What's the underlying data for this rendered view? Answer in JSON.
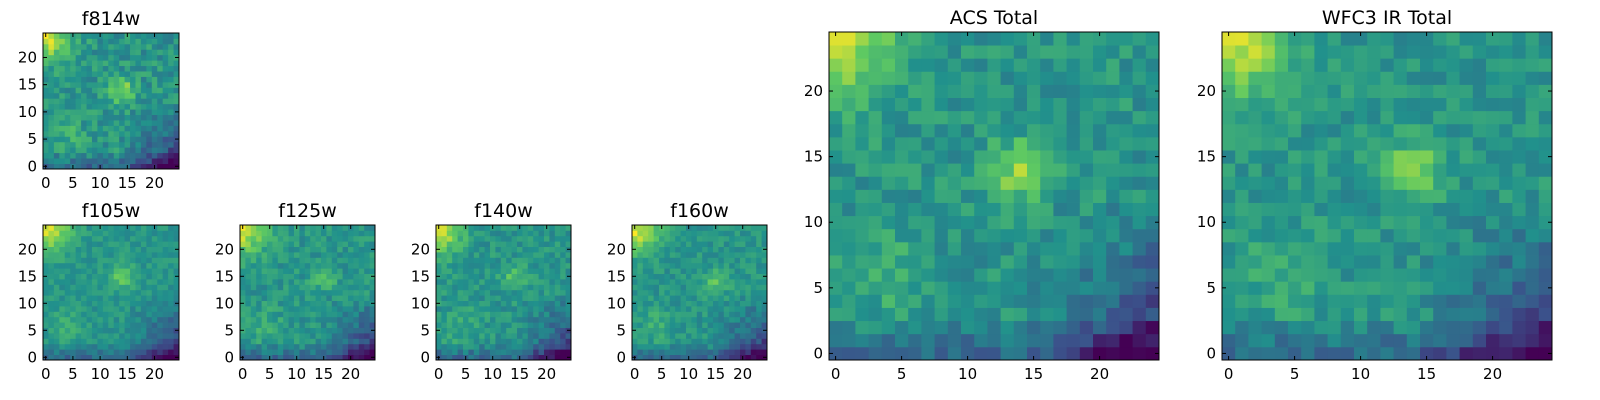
{
  "figure": {
    "colormap": [
      "#440154",
      "#3b528b",
      "#21918c",
      "#5ec962",
      "#fde725"
    ],
    "axis_color": "#000000"
  },
  "chart_data": [
    {
      "type": "heatmap",
      "title": "f814w",
      "xlim": [
        0,
        24
      ],
      "ylim": [
        0,
        24
      ],
      "xticks": [
        0,
        5,
        10,
        15,
        20
      ],
      "yticks": [
        0,
        5,
        10,
        15,
        20
      ],
      "grid_size": 25,
      "peak": [
        14,
        14
      ],
      "peak_strength": 0.32,
      "noise": 0.11,
      "seed": 3
    },
    {
      "type": "heatmap",
      "title": "f105w",
      "xlim": [
        0,
        24
      ],
      "ylim": [
        0,
        24
      ],
      "xticks": [
        0,
        5,
        10,
        15,
        20
      ],
      "yticks": [
        0,
        5,
        10,
        15,
        20
      ],
      "grid_size": 25,
      "peak": [
        14,
        15
      ],
      "peak_strength": 0.25,
      "noise": 0.07,
      "seed": 7
    },
    {
      "type": "heatmap",
      "title": "f125w",
      "xlim": [
        0,
        24
      ],
      "ylim": [
        0,
        24
      ],
      "xticks": [
        0,
        5,
        10,
        15,
        20
      ],
      "yticks": [
        0,
        5,
        10,
        15,
        20
      ],
      "grid_size": 25,
      "peak": [
        15,
        15
      ],
      "peak_strength": 0.22,
      "noise": 0.09,
      "seed": 11
    },
    {
      "type": "heatmap",
      "title": "f140w",
      "xlim": [
        0,
        24
      ],
      "ylim": [
        0,
        24
      ],
      "xticks": [
        0,
        5,
        10,
        15,
        20
      ],
      "yticks": [
        0,
        5,
        10,
        15,
        20
      ],
      "grid_size": 25,
      "peak": [
        14,
        15
      ],
      "peak_strength": 0.2,
      "noise": 0.09,
      "seed": 13
    },
    {
      "type": "heatmap",
      "title": "f160w",
      "xlim": [
        0,
        24
      ],
      "ylim": [
        0,
        24
      ],
      "xticks": [
        0,
        5,
        10,
        15,
        20
      ],
      "yticks": [
        0,
        5,
        10,
        15,
        20
      ],
      "grid_size": 25,
      "peak": [
        15,
        14
      ],
      "peak_strength": 0.2,
      "noise": 0.08,
      "seed": 17
    },
    {
      "type": "heatmap",
      "title": "ACS Total",
      "xlim": [
        0,
        24
      ],
      "ylim": [
        0,
        24
      ],
      "xticks": [
        0,
        5,
        10,
        15,
        20
      ],
      "yticks": [
        0,
        5,
        10,
        15,
        20
      ],
      "grid_size": 25,
      "peak": [
        14,
        14
      ],
      "peak_strength": 0.32,
      "noise": 0.1,
      "seed": 21
    },
    {
      "type": "heatmap",
      "title": "WFC3 IR Total",
      "xlim": [
        0,
        24
      ],
      "ylim": [
        0,
        24
      ],
      "xticks": [
        0,
        5,
        10,
        15,
        20
      ],
      "yticks": [
        0,
        5,
        10,
        15,
        20
      ],
      "grid_size": 25,
      "peak": [
        14,
        14
      ],
      "peak_strength": 0.3,
      "noise": 0.09,
      "seed": 29
    }
  ]
}
